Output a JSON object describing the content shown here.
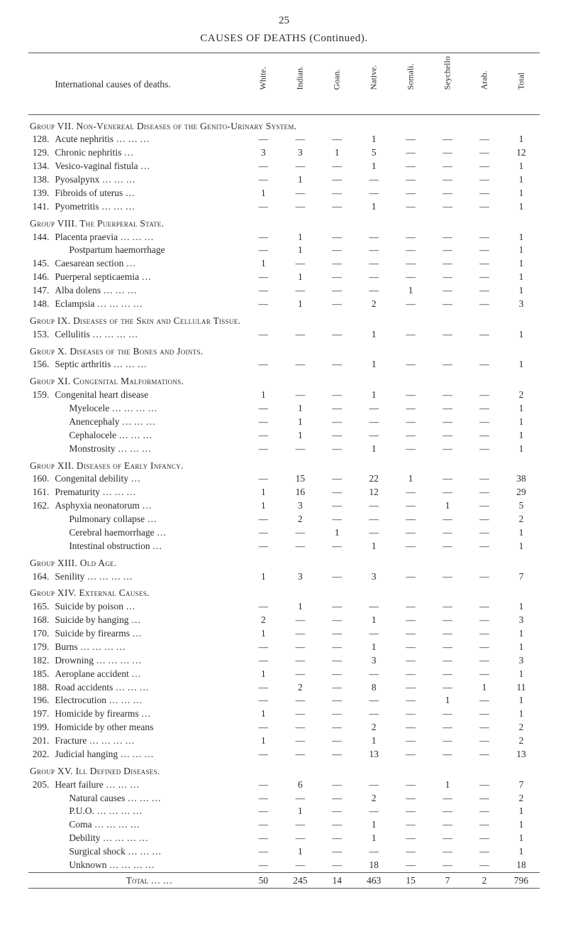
{
  "page_number": "25",
  "title": "CAUSES OF DEATHS (Continued).",
  "header_label": "International causes of deaths.",
  "columns": [
    "White.",
    "Indian.",
    "Goan.",
    "Native.",
    "Somali.",
    "Seychellois.",
    "Arab.",
    "Total"
  ],
  "total_label": "Total …   …",
  "groups": [
    {
      "title": "Group VII.  Non-Venereal Diseases of the Genito-Urinary System.",
      "rows": [
        {
          "n": "128.",
          "d": "Acute nephritis …   …   …",
          "v": [
            "—",
            "—",
            "—",
            "1",
            "—",
            "—",
            "—",
            "1"
          ]
        },
        {
          "n": "129.",
          "d": "Chronic nephritis           …",
          "v": [
            "3",
            "3",
            "1",
            "5",
            "—",
            "—",
            "—",
            "12"
          ]
        },
        {
          "n": "134.",
          "d": "Vesico-vaginal fistula    …",
          "v": [
            "—",
            "—",
            "—",
            "1",
            "—",
            "—",
            "—",
            "1"
          ]
        },
        {
          "n": "138.",
          "d": "Pyosalpynx          …   …   …",
          "v": [
            "—",
            "1",
            "—",
            "—",
            "—",
            "—",
            "—",
            "1"
          ]
        },
        {
          "n": "139.",
          "d": "Fibroids of uterus         …",
          "v": [
            "1",
            "—",
            "—",
            "—",
            "—",
            "—",
            "—",
            "1"
          ]
        },
        {
          "n": "141.",
          "d": "Pyometritis          …   …   …",
          "v": [
            "—",
            "—",
            "—",
            "1",
            "—",
            "—",
            "—",
            "1"
          ]
        }
      ]
    },
    {
      "title": "Group VIII.  The Puerperal State.",
      "rows": [
        {
          "n": "144.",
          "d": "Placenta praevia …   …   …",
          "v": [
            "—",
            "1",
            "—",
            "—",
            "—",
            "—",
            "—",
            "1"
          ]
        },
        {
          "n": "",
          "d": "Postpartum haemorrhage",
          "v": [
            "—",
            "1",
            "—",
            "—",
            "—",
            "—",
            "—",
            "1"
          ]
        },
        {
          "n": "145.",
          "d": "Caesarean section         …",
          "v": [
            "1",
            "—",
            "—",
            "—",
            "—",
            "—",
            "—",
            "1"
          ]
        },
        {
          "n": "146.",
          "d": "Puerperal septicaemia …",
          "v": [
            "—",
            "1",
            "—",
            "—",
            "—",
            "—",
            "—",
            "1"
          ]
        },
        {
          "n": "147.",
          "d": "Alba dolens         …   …   …",
          "v": [
            "—",
            "—",
            "—",
            "—",
            "1",
            "—",
            "—",
            "1"
          ]
        },
        {
          "n": "148.",
          "d": "Eclampsia …   …   …   …",
          "v": [
            "—",
            "1",
            "—",
            "2",
            "—",
            "—",
            "—",
            "3"
          ]
        }
      ]
    },
    {
      "title": "Group IX.  Diseases of the Skin and Cellular Tissue.",
      "rows": [
        {
          "n": "153.",
          "d": "Cellulitis   …   …   …   …",
          "v": [
            "—",
            "—",
            "—",
            "1",
            "—",
            "—",
            "—",
            "1"
          ]
        }
      ]
    },
    {
      "title": "Group X.  Diseases of the Bones and Joints.",
      "rows": [
        {
          "n": "156.",
          "d": "Septic arthritis …   …   …",
          "v": [
            "—",
            "—",
            "—",
            "1",
            "—",
            "—",
            "—",
            "1"
          ]
        }
      ]
    },
    {
      "title": "Group XI.  Congenital Malformations.",
      "rows": [
        {
          "n": "159.",
          "d": "Congenital heart disease",
          "v": [
            "1",
            "—",
            "—",
            "1",
            "—",
            "—",
            "—",
            "2"
          ]
        },
        {
          "n": "",
          "d": "Myelocele …   …   …   …",
          "v": [
            "—",
            "1",
            "—",
            "—",
            "—",
            "—",
            "—",
            "1"
          ]
        },
        {
          "n": "",
          "d": "Anencephaly       …   …   …",
          "v": [
            "—",
            "1",
            "—",
            "—",
            "—",
            "—",
            "—",
            "1"
          ]
        },
        {
          "n": "",
          "d": "Cephalocele         …   …   …",
          "v": [
            "—",
            "1",
            "—",
            "—",
            "—",
            "—",
            "—",
            "1"
          ]
        },
        {
          "n": "",
          "d": "Monstrosity         …   …   …",
          "v": [
            "—",
            "—",
            "—",
            "1",
            "—",
            "—",
            "—",
            "1"
          ]
        }
      ]
    },
    {
      "title": "Group XII.  Diseases of Early Infancy.",
      "rows": [
        {
          "n": "160.",
          "d": "Congenital debility       …",
          "v": [
            "—",
            "15",
            "—",
            "22",
            "1",
            "—",
            "—",
            "38"
          ]
        },
        {
          "n": "161.",
          "d": "Prematurity         …   …   …",
          "v": [
            "1",
            "16",
            "—",
            "12",
            "—",
            "—",
            "—",
            "29"
          ]
        },
        {
          "n": "162.",
          "d": "Asphyxia neonatorum   …",
          "v": [
            "1",
            "3",
            "—",
            "—",
            "—",
            "1",
            "—",
            "5"
          ]
        },
        {
          "n": "",
          "d": "Pulmonary collapse       …",
          "v": [
            "—",
            "2",
            "—",
            "—",
            "—",
            "—",
            "—",
            "2"
          ]
        },
        {
          "n": "",
          "d": "Cerebral haemorrhage   …",
          "v": [
            "—",
            "—",
            "1",
            "—",
            "—",
            "—",
            "—",
            "1"
          ]
        },
        {
          "n": "",
          "d": "Intestinal obstruction   …",
          "v": [
            "—",
            "—",
            "—",
            "1",
            "—",
            "—",
            "—",
            "1"
          ]
        }
      ]
    },
    {
      "title": "Group XIII.  Old Age.",
      "rows": [
        {
          "n": "164.",
          "d": "Senility     …   …   …   …",
          "v": [
            "1",
            "3",
            "—",
            "3",
            "—",
            "—",
            "—",
            "7"
          ]
        }
      ]
    },
    {
      "title": "Group XIV.  External Causes.",
      "rows": [
        {
          "n": "165.",
          "d": "Suicide by poison         …",
          "v": [
            "—",
            "1",
            "—",
            "—",
            "—",
            "—",
            "—",
            "1"
          ]
        },
        {
          "n": "168.",
          "d": "Suicide by hanging       …",
          "v": [
            "2",
            "—",
            "—",
            "1",
            "—",
            "—",
            "—",
            "3"
          ]
        },
        {
          "n": "170.",
          "d": "Suicide by firearms       …",
          "v": [
            "1",
            "—",
            "—",
            "—",
            "—",
            "—",
            "—",
            "1"
          ]
        },
        {
          "n": "179.",
          "d": "Burns        …   …   …   …",
          "v": [
            "—",
            "—",
            "—",
            "1",
            "—",
            "—",
            "—",
            "1"
          ]
        },
        {
          "n": "182.",
          "d": "Drowning …   …   …   …",
          "v": [
            "—",
            "—",
            "—",
            "3",
            "—",
            "—",
            "—",
            "3"
          ]
        },
        {
          "n": "185.",
          "d": "Aeroplane accident       …",
          "v": [
            "1",
            "—",
            "—",
            "—",
            "—",
            "—",
            "—",
            "1"
          ]
        },
        {
          "n": "188.",
          "d": "Road accidents   …   …   …",
          "v": [
            "—",
            "2",
            "—",
            "8",
            "—",
            "—",
            "1",
            "11"
          ]
        },
        {
          "n": "196.",
          "d": "Electrocution       …   …   …",
          "v": [
            "—",
            "—",
            "—",
            "—",
            "—",
            "1",
            "—",
            "1"
          ]
        },
        {
          "n": "197.",
          "d": "Homicide by firearms   …",
          "v": [
            "1",
            "—",
            "—",
            "—",
            "—",
            "—",
            "—",
            "1"
          ]
        },
        {
          "n": "199.",
          "d": "Homicide by other means",
          "v": [
            "—",
            "—",
            "—",
            "2",
            "—",
            "—",
            "—",
            "2"
          ]
        },
        {
          "n": "201.",
          "d": "Fracture    …   …   …   …",
          "v": [
            "1",
            "—",
            "—",
            "1",
            "—",
            "—",
            "—",
            "2"
          ]
        },
        {
          "n": "202.",
          "d": "Judicial hanging …   …   …",
          "v": [
            "—",
            "—",
            "—",
            "13",
            "—",
            "—",
            "—",
            "13"
          ]
        }
      ]
    },
    {
      "title": "Group XV.  Ill Defined Diseases.",
      "rows": [
        {
          "n": "205.",
          "d": "Heart failure        …   …   …",
          "v": [
            "—",
            "6",
            "—",
            "—",
            "—",
            "1",
            "—",
            "7"
          ]
        },
        {
          "n": "",
          "d": "Natural causes   …   …   …",
          "v": [
            "—",
            "—",
            "—",
            "2",
            "—",
            "—",
            "—",
            "2"
          ]
        },
        {
          "n": "",
          "d": "P.U.O.      …   …   …   …",
          "v": [
            "—",
            "1",
            "—",
            "—",
            "—",
            "—",
            "—",
            "1"
          ]
        },
        {
          "n": "",
          "d": "Coma        …   …   …   …",
          "v": [
            "—",
            "—",
            "—",
            "1",
            "—",
            "—",
            "—",
            "1"
          ]
        },
        {
          "n": "",
          "d": "Debility    …   …   …   …",
          "v": [
            "—",
            "—",
            "—",
            "1",
            "—",
            "—",
            "—",
            "1"
          ]
        },
        {
          "n": "",
          "d": "Surgical shock     …   …   …",
          "v": [
            "—",
            "1",
            "—",
            "—",
            "—",
            "—",
            "—",
            "1"
          ]
        },
        {
          "n": "",
          "d": "Unknown …   …   …   …",
          "v": [
            "—",
            "—",
            "—",
            "18",
            "—",
            "—",
            "—",
            "18"
          ]
        }
      ]
    }
  ],
  "total_row": [
    "50",
    "245",
    "14",
    "463",
    "15",
    "7",
    "2",
    "796"
  ]
}
